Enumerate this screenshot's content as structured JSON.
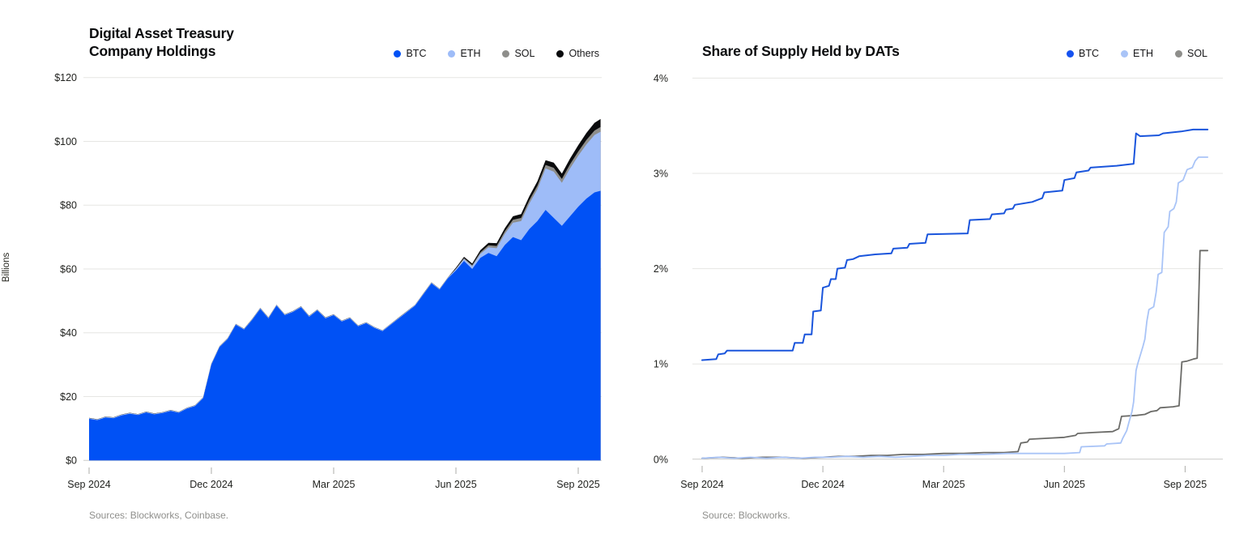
{
  "chart_data": [
    {
      "type": "area",
      "stacked": true,
      "title": "Digital Asset Treasury\nCompany Holdings",
      "ylabel": "Billions",
      "source": "Sources: Blockworks, Coinbase.",
      "x_unit": "months since Sep 2024",
      "xlim": [
        0,
        12.55
      ],
      "ylim": [
        0,
        120
      ],
      "grid": "horizontal",
      "legend_position": "top-right",
      "x_ticks": [
        {
          "pos": 0,
          "label": "Sep 2024"
        },
        {
          "pos": 3,
          "label": "Dec 2024"
        },
        {
          "pos": 6,
          "label": "Mar 2025"
        },
        {
          "pos": 9,
          "label": "Jun 2025"
        },
        {
          "pos": 12,
          "label": "Sep 2025"
        }
      ],
      "y_ticks": [
        {
          "pos": 0,
          "label": "$0"
        },
        {
          "pos": 20,
          "label": "$20"
        },
        {
          "pos": 40,
          "label": "$40"
        },
        {
          "pos": 60,
          "label": "$60"
        },
        {
          "pos": 80,
          "label": "$80"
        },
        {
          "pos": 100,
          "label": "$100"
        },
        {
          "pos": 120,
          "label": "$120"
        }
      ],
      "x": [
        0,
        0.2,
        0.4,
        0.6,
        0.8,
        1.0,
        1.2,
        1.4,
        1.6,
        1.8,
        2.0,
        2.2,
        2.4,
        2.6,
        2.8,
        3.0,
        3.2,
        3.4,
        3.6,
        3.8,
        4.0,
        4.2,
        4.4,
        4.6,
        4.8,
        5.0,
        5.2,
        5.4,
        5.6,
        5.8,
        6.0,
        6.2,
        6.4,
        6.6,
        6.8,
        7.0,
        7.2,
        7.4,
        7.6,
        7.8,
        8.0,
        8.2,
        8.4,
        8.6,
        8.8,
        9.0,
        9.2,
        9.4,
        9.6,
        9.8,
        10.0,
        10.2,
        10.4,
        10.6,
        10.8,
        11.0,
        11.2,
        11.4,
        11.6,
        11.8,
        12.0,
        12.2,
        12.4,
        12.55
      ],
      "series": [
        {
          "name": "BTC",
          "color": "#0051F5",
          "values": [
            13.0,
            12.6,
            13.4,
            13.2,
            14.1,
            14.6,
            14.2,
            15.0,
            14.4,
            14.8,
            15.5,
            14.9,
            16.2,
            17.0,
            19.5,
            30.0,
            35.5,
            38.0,
            42.5,
            41.0,
            44.0,
            47.5,
            44.5,
            48.5,
            45.5,
            46.5,
            48.0,
            45.0,
            47.0,
            44.5,
            45.5,
            43.5,
            44.5,
            42.0,
            43.0,
            41.5,
            40.5,
            42.5,
            44.5,
            46.5,
            48.5,
            52.0,
            55.5,
            53.5,
            57.0,
            59.5,
            62.5,
            60.0,
            63.5,
            65.0,
            64.0,
            67.5,
            70.0,
            69.0,
            72.5,
            75.0,
            78.5,
            76.0,
            73.5,
            76.5,
            79.5,
            82.0,
            84.0,
            84.5
          ]
        },
        {
          "name": "ETH",
          "color": "#9EBCF8",
          "values": [
            0.2,
            0.2,
            0.2,
            0.2,
            0.2,
            0.2,
            0.2,
            0.2,
            0.2,
            0.2,
            0.2,
            0.2,
            0.2,
            0.2,
            0.2,
            0.2,
            0.2,
            0.2,
            0.2,
            0.2,
            0.2,
            0.2,
            0.2,
            0.2,
            0.2,
            0.2,
            0.2,
            0.2,
            0.2,
            0.2,
            0.2,
            0.2,
            0.2,
            0.2,
            0.2,
            0.2,
            0.2,
            0.2,
            0.2,
            0.2,
            0.2,
            0.2,
            0.2,
            0.2,
            0.2,
            0.4,
            0.6,
            0.8,
            1.2,
            1.8,
            2.5,
            3.5,
            4.5,
            6.0,
            8.0,
            10.0,
            13.0,
            14.5,
            13.5,
            15.0,
            16.0,
            17.0,
            18.0,
            18.5
          ]
        },
        {
          "name": "SOL",
          "color": "#8E8E8B",
          "values": [
            0.05,
            0.05,
            0.05,
            0.05,
            0.05,
            0.05,
            0.05,
            0.05,
            0.05,
            0.05,
            0.05,
            0.05,
            0.05,
            0.05,
            0.05,
            0.05,
            0.05,
            0.05,
            0.05,
            0.05,
            0.05,
            0.05,
            0.05,
            0.05,
            0.05,
            0.05,
            0.05,
            0.05,
            0.05,
            0.05,
            0.05,
            0.05,
            0.05,
            0.05,
            0.05,
            0.05,
            0.05,
            0.05,
            0.05,
            0.05,
            0.05,
            0.05,
            0.05,
            0.05,
            0.05,
            0.2,
            0.3,
            0.4,
            0.5,
            0.6,
            0.7,
            0.8,
            0.9,
            1.0,
            1.0,
            1.1,
            1.1,
            1.2,
            1.2,
            1.3,
            1.3,
            1.4,
            1.4,
            1.5
          ]
        },
        {
          "name": "Others",
          "color": "#0A0B0D",
          "values": [
            0.05,
            0.05,
            0.05,
            0.05,
            0.05,
            0.05,
            0.05,
            0.05,
            0.05,
            0.05,
            0.05,
            0.05,
            0.05,
            0.05,
            0.05,
            0.05,
            0.05,
            0.05,
            0.05,
            0.05,
            0.05,
            0.05,
            0.05,
            0.05,
            0.05,
            0.05,
            0.05,
            0.05,
            0.05,
            0.05,
            0.05,
            0.05,
            0.05,
            0.05,
            0.05,
            0.05,
            0.05,
            0.05,
            0.05,
            0.05,
            0.05,
            0.05,
            0.05,
            0.05,
            0.05,
            0.3,
            0.4,
            0.5,
            0.7,
            0.8,
            0.9,
            1.0,
            1.1,
            1.2,
            1.3,
            1.4,
            1.5,
            1.6,
            1.7,
            1.8,
            2.0,
            2.2,
            2.4,
            2.5
          ]
        }
      ]
    },
    {
      "type": "line",
      "title": "Share of Supply Held by DATs",
      "source": "Source: Blockworks.",
      "x_unit": "months since Sep 2024",
      "xlim": [
        0,
        12.56
      ],
      "ylim": [
        0,
        4
      ],
      "grid": "horizontal",
      "legend_position": "top-right",
      "x_ticks": [
        {
          "pos": 0,
          "label": "Sep 2024"
        },
        {
          "pos": 3,
          "label": "Dec 2024"
        },
        {
          "pos": 6,
          "label": "Mar 2025"
        },
        {
          "pos": 9,
          "label": "Jun 2025"
        },
        {
          "pos": 12,
          "label": "Sep 2025"
        }
      ],
      "y_ticks": [
        {
          "pos": 0,
          "label": "0%"
        },
        {
          "pos": 1,
          "label": "1%"
        },
        {
          "pos": 2,
          "label": "2%"
        },
        {
          "pos": 3,
          "label": "3%"
        },
        {
          "pos": 4,
          "label": "4%"
        }
      ],
      "series": [
        {
          "name": "SOL",
          "color": "#6B6B68",
          "legend_color": "#8E8E8B",
          "width": 1.8,
          "points": [
            [
              0,
              0.01
            ],
            [
              0.5,
              0.02
            ],
            [
              1.0,
              0.01
            ],
            [
              1.5,
              0.02
            ],
            [
              2.0,
              0.02
            ],
            [
              2.5,
              0.01
            ],
            [
              3.0,
              0.02
            ],
            [
              3.4,
              0.03
            ],
            [
              3.8,
              0.03
            ],
            [
              4.2,
              0.04
            ],
            [
              4.6,
              0.04
            ],
            [
              5.0,
              0.05
            ],
            [
              5.5,
              0.05
            ],
            [
              6.0,
              0.06
            ],
            [
              6.5,
              0.06
            ],
            [
              7.0,
              0.07
            ],
            [
              7.5,
              0.07
            ],
            [
              7.85,
              0.08
            ],
            [
              7.92,
              0.17
            ],
            [
              8.08,
              0.18
            ],
            [
              8.13,
              0.21
            ],
            [
              8.6,
              0.22
            ],
            [
              9.0,
              0.23
            ],
            [
              9.28,
              0.25
            ],
            [
              9.33,
              0.27
            ],
            [
              9.7,
              0.28
            ],
            [
              10.2,
              0.29
            ],
            [
              10.35,
              0.32
            ],
            [
              10.42,
              0.45
            ],
            [
              10.8,
              0.46
            ],
            [
              11.0,
              0.47
            ],
            [
              11.15,
              0.5
            ],
            [
              11.3,
              0.51
            ],
            [
              11.38,
              0.54
            ],
            [
              11.7,
              0.55
            ],
            [
              11.85,
              0.56
            ],
            [
              11.92,
              1.02
            ],
            [
              12.05,
              1.03
            ],
            [
              12.2,
              1.05
            ],
            [
              12.3,
              1.06
            ],
            [
              12.37,
              2.19
            ],
            [
              12.56,
              2.19
            ]
          ]
        },
        {
          "name": "ETH",
          "color": "#A9C4F7",
          "legend_color": "#A9C4F7",
          "width": 1.8,
          "points": [
            [
              0,
              0.01
            ],
            [
              0.4,
              0.02
            ],
            [
              0.8,
              0.01
            ],
            [
              1.2,
              0.02
            ],
            [
              1.6,
              0.01
            ],
            [
              2.0,
              0.02
            ],
            [
              2.4,
              0.01
            ],
            [
              2.8,
              0.02
            ],
            [
              3.2,
              0.02
            ],
            [
              3.6,
              0.03
            ],
            [
              4.0,
              0.02
            ],
            [
              4.4,
              0.03
            ],
            [
              4.8,
              0.02
            ],
            [
              5.2,
              0.03
            ],
            [
              5.6,
              0.04
            ],
            [
              6.0,
              0.04
            ],
            [
              6.4,
              0.05
            ],
            [
              7.0,
              0.05
            ],
            [
              7.6,
              0.06
            ],
            [
              8.4,
              0.06
            ],
            [
              9.0,
              0.06
            ],
            [
              9.38,
              0.07
            ],
            [
              9.42,
              0.13
            ],
            [
              10.0,
              0.14
            ],
            [
              10.05,
              0.16
            ],
            [
              10.4,
              0.17
            ],
            [
              10.45,
              0.22
            ],
            [
              10.55,
              0.3
            ],
            [
              10.6,
              0.38
            ],
            [
              10.68,
              0.5
            ],
            [
              10.72,
              0.6
            ],
            [
              10.78,
              0.93
            ],
            [
              10.82,
              1.0
            ],
            [
              10.95,
              1.18
            ],
            [
              11.0,
              1.26
            ],
            [
              11.05,
              1.45
            ],
            [
              11.1,
              1.57
            ],
            [
              11.22,
              1.6
            ],
            [
              11.28,
              1.75
            ],
            [
              11.33,
              1.94
            ],
            [
              11.42,
              1.96
            ],
            [
              11.48,
              2.38
            ],
            [
              11.58,
              2.44
            ],
            [
              11.62,
              2.6
            ],
            [
              11.72,
              2.63
            ],
            [
              11.78,
              2.7
            ],
            [
              11.83,
              2.9
            ],
            [
              11.95,
              2.93
            ],
            [
              12.05,
              3.04
            ],
            [
              12.18,
              3.06
            ],
            [
              12.25,
              3.13
            ],
            [
              12.33,
              3.17
            ],
            [
              12.56,
              3.17
            ]
          ]
        },
        {
          "name": "BTC",
          "color": "#1A55DC",
          "legend_color": "#1552F0",
          "width": 2,
          "points": [
            [
              0,
              1.04
            ],
            [
              0.35,
              1.05
            ],
            [
              0.4,
              1.1
            ],
            [
              0.56,
              1.11
            ],
            [
              0.62,
              1.14
            ],
            [
              2.25,
              1.14
            ],
            [
              2.3,
              1.22
            ],
            [
              2.5,
              1.22
            ],
            [
              2.55,
              1.31
            ],
            [
              2.72,
              1.31
            ],
            [
              2.76,
              1.55
            ],
            [
              2.95,
              1.56
            ],
            [
              3.0,
              1.8
            ],
            [
              3.15,
              1.82
            ],
            [
              3.2,
              1.89
            ],
            [
              3.32,
              1.89
            ],
            [
              3.36,
              2.0
            ],
            [
              3.55,
              2.01
            ],
            [
              3.6,
              2.09
            ],
            [
              3.75,
              2.1
            ],
            [
              3.9,
              2.13
            ],
            [
              4.3,
              2.15
            ],
            [
              4.7,
              2.16
            ],
            [
              4.75,
              2.21
            ],
            [
              5.1,
              2.22
            ],
            [
              5.15,
              2.26
            ],
            [
              5.55,
              2.27
            ],
            [
              5.6,
              2.36
            ],
            [
              6.6,
              2.37
            ],
            [
              6.65,
              2.51
            ],
            [
              7.15,
              2.52
            ],
            [
              7.2,
              2.57
            ],
            [
              7.5,
              2.58
            ],
            [
              7.55,
              2.62
            ],
            [
              7.72,
              2.63
            ],
            [
              7.77,
              2.67
            ],
            [
              8.2,
              2.7
            ],
            [
              8.45,
              2.74
            ],
            [
              8.5,
              2.8
            ],
            [
              8.95,
              2.82
            ],
            [
              9.0,
              2.93
            ],
            [
              9.25,
              2.95
            ],
            [
              9.3,
              3.01
            ],
            [
              9.6,
              3.03
            ],
            [
              9.65,
              3.06
            ],
            [
              10.3,
              3.08
            ],
            [
              10.72,
              3.1
            ],
            [
              10.78,
              3.42
            ],
            [
              10.88,
              3.39
            ],
            [
              11.35,
              3.4
            ],
            [
              11.45,
              3.42
            ],
            [
              11.9,
              3.44
            ],
            [
              12.2,
              3.46
            ],
            [
              12.56,
              3.46
            ]
          ]
        }
      ],
      "legend_order": [
        "BTC",
        "ETH",
        "SOL"
      ]
    }
  ],
  "style": {
    "grid_color": "#E6E6E3",
    "baseline_color": "#CCCCC9",
    "tick_mark_color": "#ADADAA",
    "tick_label_color": "#222320",
    "title_color": "#0A0B0D",
    "source_color": "#8F8F8C",
    "background": "#FFFFFF"
  }
}
